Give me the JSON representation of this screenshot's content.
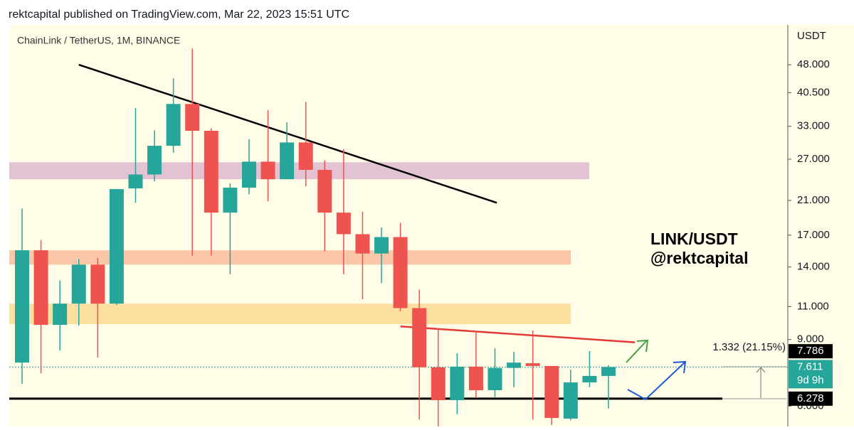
{
  "header": {
    "title": "rektcapital published on TradingView.com, Mar 22, 2023 15:51 UTC"
  },
  "chart_data": {
    "type": "candlestick",
    "title": "ChainLink / TetherUS, 1M, BINANCE",
    "y_axis_label": "USDT",
    "log_scale": true,
    "ylim": [
      5.3,
      61.2
    ],
    "yticks": [
      {
        "value": 48,
        "label": "48.000"
      },
      {
        "value": 40.5,
        "label": "40.500"
      },
      {
        "value": 33,
        "label": "33.000"
      },
      {
        "value": 27,
        "label": "27.000"
      },
      {
        "value": 21,
        "label": "21.000"
      },
      {
        "value": 17,
        "label": "17.000"
      },
      {
        "value": 14,
        "label": "14.000"
      },
      {
        "value": 11,
        "label": "11.000"
      },
      {
        "value": 9,
        "label": "9.000"
      },
      {
        "value": 6,
        "label": "6.000"
      }
    ],
    "up_color": "#26a69a",
    "down_color": "#ef5350",
    "open": [
      7.82,
      15.5,
      9.84,
      11.2,
      14.2,
      11.2,
      22.6,
      24.6,
      29.3,
      37.8,
      32.1,
      19.5,
      22.7,
      26.6,
      23.9,
      29.9,
      25.3,
      19.5,
      17.1,
      15.2,
      16.8,
      10.9,
      7.6,
      6.22,
      7.63,
      6.61,
      7.57,
      7.79,
      7.66,
      5.56,
      6.93,
      7.21
    ],
    "high": [
      20.0,
      16.5,
      12.9,
      14.7,
      14.8,
      22.5,
      36.9,
      32.2,
      44.2,
      53.0,
      32.6,
      23.3,
      30.5,
      36.4,
      33.8,
      38.3,
      26.8,
      28.7,
      19.6,
      17.8,
      18.3,
      12.2,
      9.63,
      8.28,
      9.47,
      8.53,
      8.35,
      9.51,
      7.66,
      7.49,
      8.39,
      7.7
    ],
    "low": [
      6.87,
      7.33,
      8.42,
      9.8,
      8.07,
      11.1,
      20.7,
      23.6,
      28.1,
      15.0,
      15.0,
      13.4,
      21.8,
      20.9,
      23.9,
      22.9,
      15.4,
      13.4,
      11.5,
      12.7,
      10.7,
      5.53,
      5.2,
      5.71,
      6.3,
      6.3,
      6.73,
      5.53,
      5.35,
      5.5,
      6.73,
      5.91
    ],
    "close": [
      15.5,
      9.84,
      11.2,
      14.2,
      11.2,
      22.5,
      24.6,
      29.3,
      37.8,
      32.1,
      19.5,
      22.7,
      26.6,
      23.9,
      29.9,
      25.3,
      19.5,
      17.1,
      15.2,
      16.8,
      10.9,
      7.6,
      6.22,
      7.63,
      6.61,
      7.57,
      7.82,
      7.66,
      5.58,
      6.93,
      7.21,
      7.611
    ],
    "zones": [
      {
        "low": 23.9,
        "high": 26.5,
        "color": "#e3c3d3"
      },
      {
        "low": 14.2,
        "high": 15.5,
        "color": "#fbc7a8"
      },
      {
        "low": 9.88,
        "high": 11.2,
        "color": "#fde0a0"
      }
    ],
    "trend_lines": [
      {
        "x": [
          3,
          25.1
        ],
        "y": [
          48,
          20.7
        ],
        "color": "#000000"
      },
      {
        "x": [
          20,
          32.4
        ],
        "y": [
          9.75,
          8.85
        ],
        "color": "#e53935"
      }
    ],
    "price_labels": [
      {
        "value": 7.786,
        "color": "#000000"
      },
      {
        "value": 7.611,
        "color": "#26a69a"
      },
      {
        "value": 6.278,
        "color": "#000000"
      }
    ],
    "countdown": "9d 9h",
    "measure_label": "1.332 (21.15%)",
    "annotation": [
      "LINK/USDT",
      "@rektcapital"
    ]
  }
}
